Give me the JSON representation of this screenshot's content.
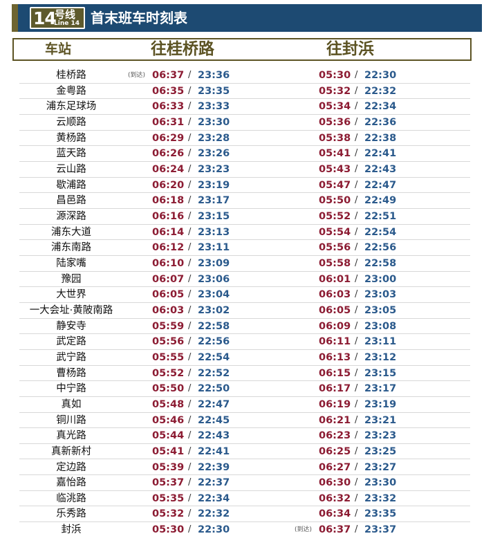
{
  "header": {
    "line_number": "14",
    "line_suffix": "号线",
    "line_en": "Line 14",
    "title": "首末班车时刻表"
  },
  "columns": {
    "station": "车站",
    "dir1": "往桂桥路",
    "dir2": "往封浜"
  },
  "arrive_label": "(到达)",
  "separator": "/",
  "colors": {
    "header_bg": "#1d4a72",
    "accent": "#5c5323",
    "first_train": "#8c1c33",
    "last_train": "#2b5a8c"
  },
  "rows": [
    {
      "station": "桂桥路",
      "d1_first": "06:37",
      "d1_last": "23:36",
      "d2_first": "05:30",
      "d2_last": "22:30",
      "arrive": "d1"
    },
    {
      "station": "金粤路",
      "d1_first": "06:35",
      "d1_last": "23:35",
      "d2_first": "05:32",
      "d2_last": "22:32"
    },
    {
      "station": "浦东足球场",
      "d1_first": "06:33",
      "d1_last": "23:33",
      "d2_first": "05:34",
      "d2_last": "22:34"
    },
    {
      "station": "云顺路",
      "d1_first": "06:31",
      "d1_last": "23:30",
      "d2_first": "05:36",
      "d2_last": "22:36"
    },
    {
      "station": "黄杨路",
      "d1_first": "06:29",
      "d1_last": "23:28",
      "d2_first": "05:38",
      "d2_last": "22:38"
    },
    {
      "station": "蓝天路",
      "d1_first": "06:26",
      "d1_last": "23:26",
      "d2_first": "05:41",
      "d2_last": "22:41"
    },
    {
      "station": "云山路",
      "d1_first": "06:24",
      "d1_last": "23:23",
      "d2_first": "05:43",
      "d2_last": "22:43"
    },
    {
      "station": "歇浦路",
      "d1_first": "06:20",
      "d1_last": "23:19",
      "d2_first": "05:47",
      "d2_last": "22:47"
    },
    {
      "station": "昌邑路",
      "d1_first": "06:18",
      "d1_last": "23:17",
      "d2_first": "05:50",
      "d2_last": "22:49"
    },
    {
      "station": "源深路",
      "d1_first": "06:16",
      "d1_last": "23:15",
      "d2_first": "05:52",
      "d2_last": "22:51"
    },
    {
      "station": "浦东大道",
      "d1_first": "06:14",
      "d1_last": "23:13",
      "d2_first": "05:54",
      "d2_last": "22:54"
    },
    {
      "station": "浦东南路",
      "d1_first": "06:12",
      "d1_last": "23:11",
      "d2_first": "05:56",
      "d2_last": "22:56"
    },
    {
      "station": "陆家嘴",
      "d1_first": "06:10",
      "d1_last": "23:09",
      "d2_first": "05:58",
      "d2_last": "22:58"
    },
    {
      "station": "豫园",
      "d1_first": "06:07",
      "d1_last": "23:06",
      "d2_first": "06:01",
      "d2_last": "23:00"
    },
    {
      "station": "大世界",
      "d1_first": "06:05",
      "d1_last": "23:04",
      "d2_first": "06:03",
      "d2_last": "23:03"
    },
    {
      "station": "一大会址·黄陂南路",
      "d1_first": "06:03",
      "d1_last": "23:02",
      "d2_first": "06:05",
      "d2_last": "23:05"
    },
    {
      "station": "静安寺",
      "d1_first": "05:59",
      "d1_last": "22:58",
      "d2_first": "06:09",
      "d2_last": "23:08"
    },
    {
      "station": "武定路",
      "d1_first": "05:56",
      "d1_last": "22:56",
      "d2_first": "06:11",
      "d2_last": "23:11"
    },
    {
      "station": "武宁路",
      "d1_first": "05:55",
      "d1_last": "22:54",
      "d2_first": "06:13",
      "d2_last": "23:12"
    },
    {
      "station": "曹杨路",
      "d1_first": "05:52",
      "d1_last": "22:52",
      "d2_first": "06:15",
      "d2_last": "23:15"
    },
    {
      "station": "中宁路",
      "d1_first": "05:50",
      "d1_last": "22:50",
      "d2_first": "06:17",
      "d2_last": "23:17"
    },
    {
      "station": "真如",
      "d1_first": "05:48",
      "d1_last": "22:47",
      "d2_first": "06:19",
      "d2_last": "23:19"
    },
    {
      "station": "铜川路",
      "d1_first": "05:46",
      "d1_last": "22:45",
      "d2_first": "06:21",
      "d2_last": "23:21"
    },
    {
      "station": "真光路",
      "d1_first": "05:44",
      "d1_last": "22:43",
      "d2_first": "06:23",
      "d2_last": "23:23"
    },
    {
      "station": "真新新村",
      "d1_first": "05:41",
      "d1_last": "22:41",
      "d2_first": "06:25",
      "d2_last": "23:25"
    },
    {
      "station": "定边路",
      "d1_first": "05:39",
      "d1_last": "22:39",
      "d2_first": "06:27",
      "d2_last": "23:27"
    },
    {
      "station": "嘉怡路",
      "d1_first": "05:37",
      "d1_last": "22:37",
      "d2_first": "06:30",
      "d2_last": "23:30"
    },
    {
      "station": "临洮路",
      "d1_first": "05:35",
      "d1_last": "22:34",
      "d2_first": "06:32",
      "d2_last": "23:32"
    },
    {
      "station": "乐秀路",
      "d1_first": "05:32",
      "d1_last": "22:32",
      "d2_first": "06:34",
      "d2_last": "23:35"
    },
    {
      "station": "封浜",
      "d1_first": "05:30",
      "d1_last": "22:30",
      "d2_first": "06:37",
      "d2_last": "23:37",
      "arrive": "d2"
    }
  ]
}
